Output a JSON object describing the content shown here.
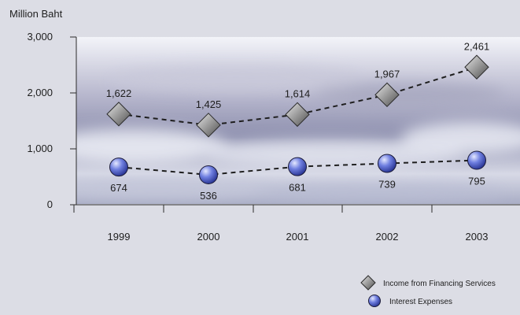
{
  "chart_data": {
    "type": "line",
    "ylabel": "Million Baht",
    "categories": [
      "1999",
      "2000",
      "2001",
      "2002",
      "2003"
    ],
    "ylim": [
      0,
      3000
    ],
    "yticks": [
      "0",
      "1,000",
      "2,000",
      "3,000"
    ],
    "ytick_values": [
      0,
      1000,
      2000,
      3000
    ],
    "grid": false,
    "legend_position": "bottom-right",
    "series": [
      {
        "name": "Income from Financing Services",
        "marker": "diamond",
        "color": "#8a8a8a",
        "values": [
          1622,
          1425,
          1614,
          1967,
          2461
        ],
        "labels": [
          "1,622",
          "1,425",
          "1,614",
          "1,967",
          "2,461"
        ]
      },
      {
        "name": "Interest Expenses",
        "marker": "circle",
        "color": "#4a5bc4",
        "values": [
          674,
          536,
          681,
          739,
          795
        ],
        "labels": [
          "674",
          "536",
          "681",
          "739",
          "795"
        ]
      }
    ]
  }
}
